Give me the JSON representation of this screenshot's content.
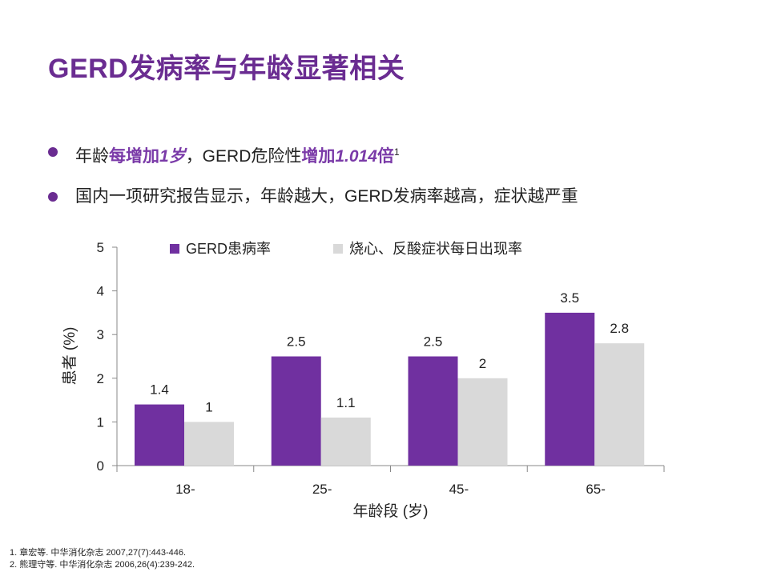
{
  "title": "GERD发病率与年龄显著相关",
  "bullets": [
    {
      "parts": [
        "年龄",
        "每增加",
        "1岁",
        "，GERD危险性",
        "增加",
        "1.014",
        "倍",
        "1"
      ]
    },
    {
      "text": "国内一项研究报告显示，年龄越大，GERD发病率越高，症状越严重"
    }
  ],
  "references": [
    "1. 章宏等. 中华消化杂志 2007,27(7):443-446.",
    "2. 熊理守等. 中华消化杂志 2006,26(4):239-242."
  ],
  "colors": {
    "accent": "#6a2c91",
    "series1": "#7030a0",
    "series2": "#d9d9d9"
  },
  "chart_data": {
    "type": "bar",
    "categories": [
      "18-",
      "25-",
      "45-",
      "65-"
    ],
    "series": [
      {
        "name": "GERD患病率",
        "values": [
          1.4,
          2.5,
          2.5,
          3.5
        ]
      },
      {
        "name": "烧心、反酸症状每日出现率",
        "values": [
          1,
          1.1,
          2,
          2.8
        ]
      }
    ],
    "xlabel": "年龄段 (岁)",
    "ylabel": "患者 (%)",
    "ylim": [
      0,
      5
    ],
    "yticks": [
      0,
      1,
      2,
      3,
      4,
      5
    ],
    "grid": false,
    "legend": "top"
  }
}
